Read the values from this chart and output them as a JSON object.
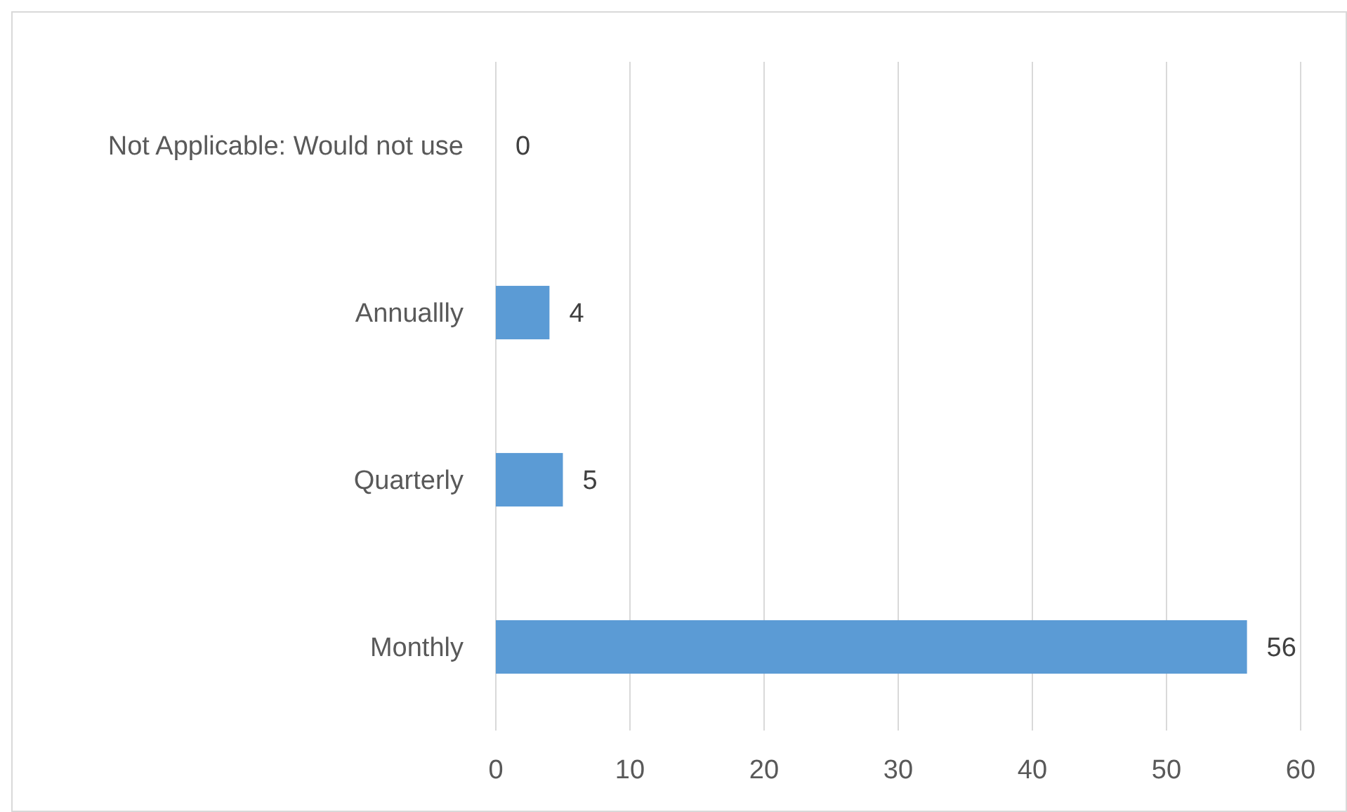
{
  "chart_data": {
    "type": "bar",
    "orientation": "horizontal",
    "categories": [
      "Not Applicable: Would not use",
      "Annuallly",
      "Quarterly",
      "Monthly"
    ],
    "values": [
      0,
      4,
      5,
      56
    ],
    "color": "#5b9bd5",
    "xlim": [
      0,
      60
    ],
    "xticks": [
      0,
      10,
      20,
      30,
      40,
      50,
      60
    ],
    "grid": "x",
    "data_labels": true
  }
}
